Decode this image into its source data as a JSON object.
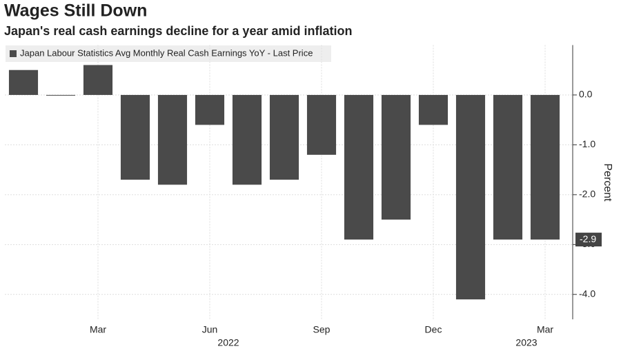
{
  "chart_data": {
    "type": "bar",
    "title": "Wages Still Down",
    "subtitle": "Japan's real cash earnings decline for a year amid inflation",
    "y_label": "Percent",
    "categories": [
      null,
      null,
      "Mar",
      null,
      null,
      "Jun",
      null,
      null,
      "Sep",
      null,
      null,
      "Dec",
      null,
      null,
      "Mar"
    ],
    "years": [
      null,
      null,
      null,
      null,
      null,
      "2022",
      null,
      null,
      null,
      null,
      null,
      null,
      null,
      "2023",
      null
    ],
    "series": [
      {
        "name": "Japan Labour Statistics Avg Monthly Real Cash Earnings YoY - Last Price",
        "color": "#4a4a4a",
        "values": [
          0.5,
          0.0,
          0.6,
          -1.7,
          -1.8,
          -0.6,
          -1.8,
          -1.7,
          -1.2,
          -2.9,
          -2.5,
          -0.6,
          -4.1,
          -2.9,
          -2.9
        ]
      }
    ],
    "last_price": {
      "value": -2.9,
      "label": "-2.9"
    },
    "ylim": [
      -4.5,
      1.0
    ],
    "yticks": [
      {
        "value": 0,
        "label": "0.0"
      },
      {
        "value": -1,
        "label": "-1.0"
      },
      {
        "value": -2,
        "label": "-2.0"
      },
      {
        "value": -3,
        "label": "-3.0"
      },
      {
        "value": -4,
        "label": "-4.0"
      }
    ],
    "grid": true
  }
}
